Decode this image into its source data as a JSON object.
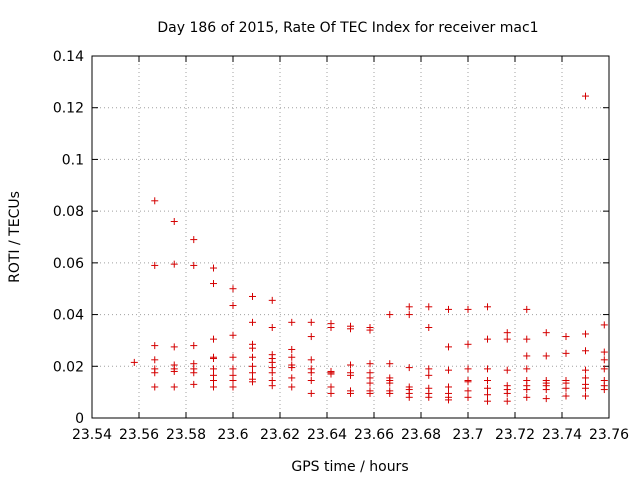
{
  "chart_data": {
    "type": "scatter",
    "title": "Day 186 of 2015, Rate Of TEC Index for receiver mac1",
    "xlabel": "GPS time / hours",
    "ylabel": "ROTI / TECUs",
    "xlim": [
      23.54,
      23.76
    ],
    "ylim": [
      0,
      0.14
    ],
    "xticks": [
      "23.54",
      "23.56",
      "23.58",
      "23.6",
      "23.62",
      "23.64",
      "23.66",
      "23.68",
      "23.7",
      "23.72",
      "23.74",
      "23.76"
    ],
    "yticks": [
      "0",
      "0.02",
      "0.04",
      "0.06",
      "0.08",
      "0.1",
      "0.12",
      "0.14"
    ],
    "grid": true,
    "marker": "+",
    "color": "#d40000",
    "series": [
      {
        "name": "ROTI",
        "points": [
          [
            23.558,
            0.0215
          ],
          [
            23.5667,
            0.084
          ],
          [
            23.5667,
            0.059
          ],
          [
            23.5667,
            0.028
          ],
          [
            23.5667,
            0.0225
          ],
          [
            23.5667,
            0.019
          ],
          [
            23.5667,
            0.0175
          ],
          [
            23.5667,
            0.012
          ],
          [
            23.575,
            0.076
          ],
          [
            23.575,
            0.0595
          ],
          [
            23.575,
            0.0275
          ],
          [
            23.575,
            0.0205
          ],
          [
            23.575,
            0.019
          ],
          [
            23.575,
            0.018
          ],
          [
            23.575,
            0.012
          ],
          [
            23.5833,
            0.069
          ],
          [
            23.5833,
            0.059
          ],
          [
            23.5833,
            0.028
          ],
          [
            23.5833,
            0.021
          ],
          [
            23.5833,
            0.019
          ],
          [
            23.5833,
            0.0175
          ],
          [
            23.5833,
            0.013
          ],
          [
            23.5917,
            0.058
          ],
          [
            23.5917,
            0.052
          ],
          [
            23.5917,
            0.0305
          ],
          [
            23.5917,
            0.0235
          ],
          [
            23.5917,
            0.023
          ],
          [
            23.5917,
            0.019
          ],
          [
            23.5917,
            0.0165
          ],
          [
            23.5917,
            0.0145
          ],
          [
            23.5917,
            0.012
          ],
          [
            23.6,
            0.05
          ],
          [
            23.6,
            0.0435
          ],
          [
            23.6,
            0.032
          ],
          [
            23.6,
            0.0235
          ],
          [
            23.6,
            0.019
          ],
          [
            23.6,
            0.0165
          ],
          [
            23.6,
            0.0145
          ],
          [
            23.6,
            0.012
          ],
          [
            23.6083,
            0.047
          ],
          [
            23.6083,
            0.037
          ],
          [
            23.6083,
            0.0285
          ],
          [
            23.6083,
            0.027
          ],
          [
            23.6083,
            0.0235
          ],
          [
            23.6083,
            0.02
          ],
          [
            23.6083,
            0.0175
          ],
          [
            23.6083,
            0.015
          ],
          [
            23.6083,
            0.014
          ],
          [
            23.6167,
            0.0455
          ],
          [
            23.6167,
            0.035
          ],
          [
            23.6167,
            0.0245
          ],
          [
            23.6167,
            0.023
          ],
          [
            23.6167,
            0.0215
          ],
          [
            23.6167,
            0.0195
          ],
          [
            23.6167,
            0.0175
          ],
          [
            23.6167,
            0.0145
          ],
          [
            23.6167,
            0.0125
          ],
          [
            23.625,
            0.037
          ],
          [
            23.625,
            0.0265
          ],
          [
            23.625,
            0.0235
          ],
          [
            23.625,
            0.0205
          ],
          [
            23.625,
            0.0195
          ],
          [
            23.625,
            0.0155
          ],
          [
            23.625,
            0.012
          ],
          [
            23.6333,
            0.037
          ],
          [
            23.6333,
            0.0315
          ],
          [
            23.6333,
            0.0225
          ],
          [
            23.6333,
            0.019
          ],
          [
            23.6333,
            0.0175
          ],
          [
            23.6333,
            0.0145
          ],
          [
            23.6333,
            0.0095
          ],
          [
            23.6417,
            0.0365
          ],
          [
            23.6417,
            0.035
          ],
          [
            23.6417,
            0.018
          ],
          [
            23.6417,
            0.0175
          ],
          [
            23.6417,
            0.017
          ],
          [
            23.6417,
            0.012
          ],
          [
            23.6417,
            0.0095
          ],
          [
            23.65,
            0.0355
          ],
          [
            23.65,
            0.0345
          ],
          [
            23.65,
            0.0205
          ],
          [
            23.65,
            0.0175
          ],
          [
            23.65,
            0.0165
          ],
          [
            23.65,
            0.0105
          ],
          [
            23.65,
            0.0095
          ],
          [
            23.6583,
            0.035
          ],
          [
            23.6583,
            0.034
          ],
          [
            23.6583,
            0.021
          ],
          [
            23.6583,
            0.0175
          ],
          [
            23.6583,
            0.0155
          ],
          [
            23.6583,
            0.0135
          ],
          [
            23.6583,
            0.0105
          ],
          [
            23.6583,
            0.0095
          ],
          [
            23.6667,
            0.04
          ],
          [
            23.6667,
            0.021
          ],
          [
            23.6667,
            0.0155
          ],
          [
            23.6667,
            0.0145
          ],
          [
            23.6667,
            0.0135
          ],
          [
            23.6667,
            0.0105
          ],
          [
            23.6667,
            0.0095
          ],
          [
            23.675,
            0.043
          ],
          [
            23.675,
            0.04
          ],
          [
            23.675,
            0.0195
          ],
          [
            23.675,
            0.012
          ],
          [
            23.675,
            0.011
          ],
          [
            23.675,
            0.0095
          ],
          [
            23.675,
            0.008
          ],
          [
            23.6833,
            0.043
          ],
          [
            23.6833,
            0.035
          ],
          [
            23.6833,
            0.019
          ],
          [
            23.6833,
            0.0165
          ],
          [
            23.6833,
            0.0115
          ],
          [
            23.6833,
            0.0095
          ],
          [
            23.6833,
            0.008
          ],
          [
            23.6917,
            0.042
          ],
          [
            23.6917,
            0.0275
          ],
          [
            23.6917,
            0.0185
          ],
          [
            23.6917,
            0.012
          ],
          [
            23.6917,
            0.0095
          ],
          [
            23.6917,
            0.008
          ],
          [
            23.6917,
            0.007
          ],
          [
            23.7,
            0.042
          ],
          [
            23.7,
            0.0285
          ],
          [
            23.7,
            0.019
          ],
          [
            23.7,
            0.0145
          ],
          [
            23.7,
            0.014
          ],
          [
            23.7,
            0.0105
          ],
          [
            23.7,
            0.008
          ],
          [
            23.7083,
            0.043
          ],
          [
            23.7083,
            0.0305
          ],
          [
            23.7083,
            0.019
          ],
          [
            23.7083,
            0.0145
          ],
          [
            23.7083,
            0.0115
          ],
          [
            23.7083,
            0.009
          ],
          [
            23.7083,
            0.0065
          ],
          [
            23.7167,
            0.033
          ],
          [
            23.7167,
            0.0305
          ],
          [
            23.7167,
            0.0185
          ],
          [
            23.7167,
            0.0125
          ],
          [
            23.7167,
            0.011
          ],
          [
            23.7167,
            0.0095
          ],
          [
            23.7167,
            0.0065
          ],
          [
            23.725,
            0.042
          ],
          [
            23.725,
            0.0305
          ],
          [
            23.725,
            0.024
          ],
          [
            23.725,
            0.019
          ],
          [
            23.725,
            0.0145
          ],
          [
            23.725,
            0.0125
          ],
          [
            23.725,
            0.011
          ],
          [
            23.725,
            0.008
          ],
          [
            23.7333,
            0.033
          ],
          [
            23.7333,
            0.024
          ],
          [
            23.7333,
            0.0145
          ],
          [
            23.7333,
            0.0135
          ],
          [
            23.7333,
            0.0125
          ],
          [
            23.7333,
            0.011
          ],
          [
            23.7333,
            0.0075
          ],
          [
            23.7417,
            0.0315
          ],
          [
            23.7417,
            0.025
          ],
          [
            23.7417,
            0.0145
          ],
          [
            23.7417,
            0.0135
          ],
          [
            23.7417,
            0.0115
          ],
          [
            23.7417,
            0.0085
          ],
          [
            23.75,
            0.1245
          ],
          [
            23.75,
            0.0325
          ],
          [
            23.75,
            0.026
          ],
          [
            23.75,
            0.0185
          ],
          [
            23.75,
            0.0155
          ],
          [
            23.75,
            0.013
          ],
          [
            23.75,
            0.0115
          ],
          [
            23.75,
            0.0085
          ],
          [
            23.758,
            0.036
          ],
          [
            23.758,
            0.0255
          ],
          [
            23.758,
            0.0225
          ],
          [
            23.758,
            0.019
          ],
          [
            23.758,
            0.0145
          ],
          [
            23.758,
            0.0125
          ],
          [
            23.758,
            0.011
          ]
        ]
      }
    ]
  }
}
